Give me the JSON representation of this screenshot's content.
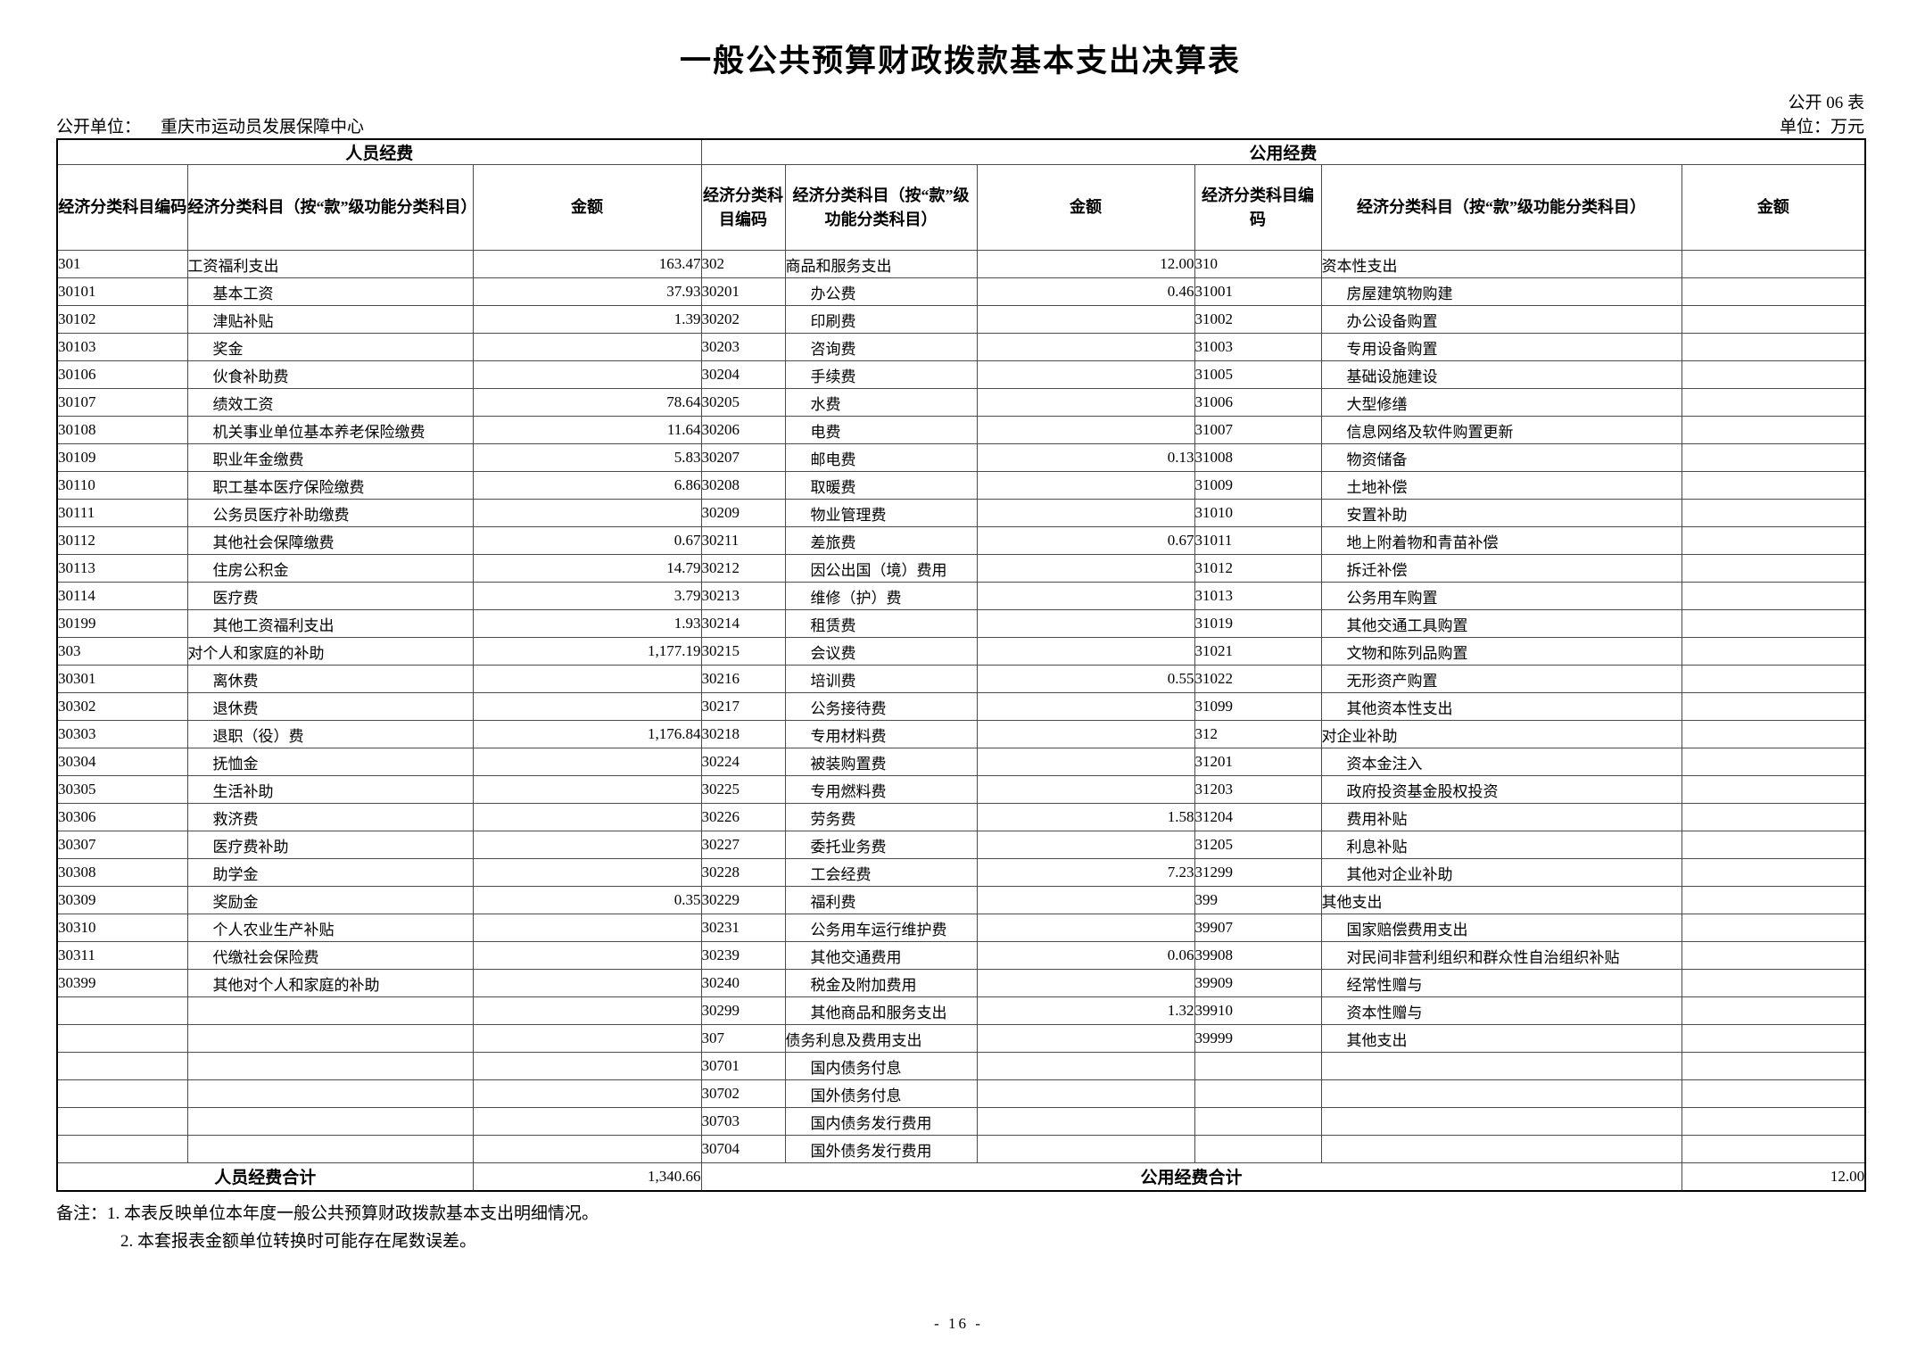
{
  "page": {
    "title": "一般公共预算财政拨款基本支出决算表",
    "sheet_code": "公开 06 表",
    "org_label": "公开单位：",
    "org_name": "重庆市运动员发展保障中心",
    "unit_note": "单位：万元",
    "page_number": "- 16 -"
  },
  "table": {
    "groups": {
      "personnel": "人员经费",
      "public": "公用经费"
    },
    "headers": {
      "code": "经济分类科目编码",
      "subject": "经济分类科目（按“款”级功能分类科目）",
      "amount": "金额"
    },
    "rows": [
      [
        "301",
        "工资福利支出",
        "163.47",
        "302",
        "商品和服务支出",
        "12.00",
        "310",
        "资本性支出",
        ""
      ],
      [
        "30101",
        "基本工资",
        "37.93",
        "30201",
        "办公费",
        "0.46",
        "31001",
        "房屋建筑物购建",
        ""
      ],
      [
        "30102",
        "津贴补贴",
        "1.39",
        "30202",
        "印刷费",
        "",
        "31002",
        "办公设备购置",
        ""
      ],
      [
        "30103",
        "奖金",
        "",
        "30203",
        "咨询费",
        "",
        "31003",
        "专用设备购置",
        ""
      ],
      [
        "30106",
        "伙食补助费",
        "",
        "30204",
        "手续费",
        "",
        "31005",
        "基础设施建设",
        ""
      ],
      [
        "30107",
        "绩效工资",
        "78.64",
        "30205",
        "水费",
        "",
        "31006",
        "大型修缮",
        ""
      ],
      [
        "30108",
        "机关事业单位基本养老保险缴费",
        "11.64",
        "30206",
        "电费",
        "",
        "31007",
        "信息网络及软件购置更新",
        ""
      ],
      [
        "30109",
        "职业年金缴费",
        "5.83",
        "30207",
        "邮电费",
        "0.13",
        "31008",
        "物资储备",
        ""
      ],
      [
        "30110",
        "职工基本医疗保险缴费",
        "6.86",
        "30208",
        "取暖费",
        "",
        "31009",
        "土地补偿",
        ""
      ],
      [
        "30111",
        "公务员医疗补助缴费",
        "",
        "30209",
        "物业管理费",
        "",
        "31010",
        "安置补助",
        ""
      ],
      [
        "30112",
        "其他社会保障缴费",
        "0.67",
        "30211",
        "差旅费",
        "0.67",
        "31011",
        "地上附着物和青苗补偿",
        ""
      ],
      [
        "30113",
        "住房公积金",
        "14.79",
        "30212",
        "因公出国（境）费用",
        "",
        "31012",
        "拆迁补偿",
        ""
      ],
      [
        "30114",
        "医疗费",
        "3.79",
        "30213",
        "维修（护）费",
        "",
        "31013",
        "公务用车购置",
        ""
      ],
      [
        "30199",
        "其他工资福利支出",
        "1.93",
        "30214",
        "租赁费",
        "",
        "31019",
        "其他交通工具购置",
        ""
      ],
      [
        "303",
        "对个人和家庭的补助",
        "1,177.19",
        "30215",
        "会议费",
        "",
        "31021",
        "文物和陈列品购置",
        ""
      ],
      [
        "30301",
        "离休费",
        "",
        "30216",
        "培训费",
        "0.55",
        "31022",
        "无形资产购置",
        ""
      ],
      [
        "30302",
        "退休费",
        "",
        "30217",
        "公务接待费",
        "",
        "31099",
        "其他资本性支出",
        ""
      ],
      [
        "30303",
        "退职（役）费",
        "1,176.84",
        "30218",
        "专用材料费",
        "",
        "312",
        "对企业补助",
        ""
      ],
      [
        "30304",
        "抚恤金",
        "",
        "30224",
        "被装购置费",
        "",
        "31201",
        "资本金注入",
        ""
      ],
      [
        "30305",
        "生活补助",
        "",
        "30225",
        "专用燃料费",
        "",
        "31203",
        "政府投资基金股权投资",
        ""
      ],
      [
        "30306",
        "救济费",
        "",
        "30226",
        "劳务费",
        "1.58",
        "31204",
        "费用补贴",
        ""
      ],
      [
        "30307",
        "医疗费补助",
        "",
        "30227",
        "委托业务费",
        "",
        "31205",
        "利息补贴",
        ""
      ],
      [
        "30308",
        "助学金",
        "",
        "30228",
        "工会经费",
        "7.23",
        "31299",
        "其他对企业补助",
        ""
      ],
      [
        "30309",
        "奖励金",
        "0.35",
        "30229",
        "福利费",
        "",
        "399",
        "其他支出",
        ""
      ],
      [
        "30310",
        "个人农业生产补贴",
        "",
        "30231",
        "公务用车运行维护费",
        "",
        "39907",
        "国家赔偿费用支出",
        ""
      ],
      [
        "30311",
        "代缴社会保险费",
        "",
        "30239",
        "其他交通费用",
        "0.06",
        "39908",
        "对民间非营利组织和群众性自治组织补贴",
        ""
      ],
      [
        "30399",
        "其他对个人和家庭的补助",
        "",
        "30240",
        "税金及附加费用",
        "",
        "39909",
        "经常性赠与",
        ""
      ],
      [
        "",
        "",
        "",
        "30299",
        "其他商品和服务支出",
        "1.32",
        "39910",
        "资本性赠与",
        ""
      ],
      [
        "",
        "",
        "",
        "307",
        "债务利息及费用支出",
        "",
        "39999",
        "其他支出",
        ""
      ],
      [
        "",
        "",
        "",
        "30701",
        "国内债务付息",
        "",
        "",
        "",
        ""
      ],
      [
        "",
        "",
        "",
        "30702",
        "国外债务付息",
        "",
        "",
        "",
        ""
      ],
      [
        "",
        "",
        "",
        "30703",
        "国内债务发行费用",
        "",
        "",
        "",
        ""
      ],
      [
        "",
        "",
        "",
        "30704",
        "国外债务发行费用",
        "",
        "",
        "",
        ""
      ]
    ],
    "totals": {
      "personnel_label": "人员经费合计",
      "personnel_amount": "1,340.66",
      "public_label": "公用经费合计",
      "public_amount": "12.00"
    }
  },
  "notes": {
    "line1": "备注：1. 本表反映单位本年度一般公共预算财政拨款基本支出明细情况。",
    "line2": "2. 本套报表金额单位转换时可能存在尾数误差。"
  }
}
